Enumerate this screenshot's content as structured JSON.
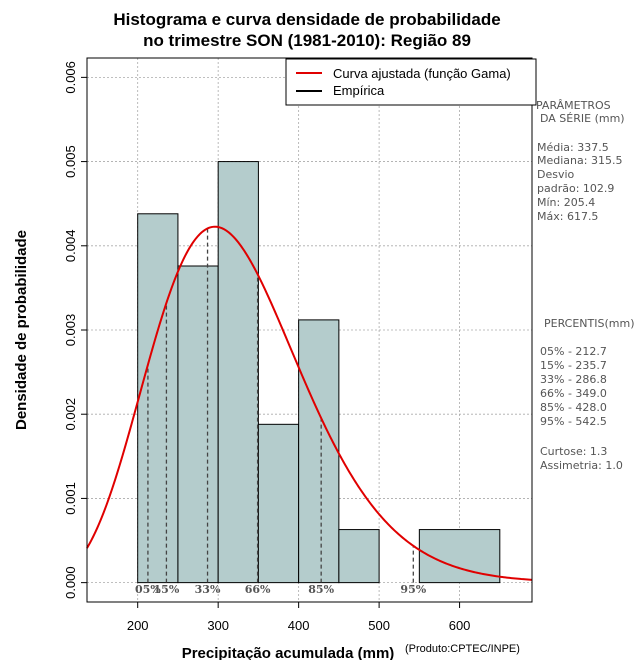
{
  "chart_data": {
    "type": "histogram",
    "title_line1": "Histograma e curva densidade de probabilidade",
    "title_line2": "no trimestre SON (1981-2010): Região 89",
    "xlabel": "Precipitação acumulada (mm)",
    "ylabel": "Densidade de probabilidade",
    "credit": "(Produto:CPTEC/INPE)",
    "xlim": [
      137,
      690
    ],
    "ylim": [
      -0.00023,
      0.00623
    ],
    "x_ticks": [
      200,
      300,
      400,
      500,
      600
    ],
    "x_tick_labels": [
      "200",
      "300",
      "400",
      "500",
      "600"
    ],
    "y_ticks": [
      0,
      0.001,
      0.002,
      0.003,
      0.004,
      0.005,
      0.006
    ],
    "y_tick_labels": [
      "0.000",
      "0.001",
      "0.002",
      "0.003",
      "0.004",
      "0.005",
      "0.006"
    ],
    "grid": true,
    "bins": [
      {
        "from": 200,
        "to": 250,
        "density": 0.00438
      },
      {
        "from": 250,
        "to": 300,
        "density": 0.00376
      },
      {
        "from": 300,
        "to": 350,
        "density": 0.005
      },
      {
        "from": 350,
        "to": 400,
        "density": 0.00188
      },
      {
        "from": 400,
        "to": 450,
        "density": 0.00312
      },
      {
        "from": 450,
        "to": 500,
        "density": 0.00063
      },
      {
        "from": 550,
        "to": 650,
        "density": 0.00063
      }
    ],
    "fitted_curve": {
      "name": "Curva ajustada (função Gama)",
      "color": "#e00000",
      "gamma_shape": 11.0,
      "gamma_scale": 29.6
    },
    "empirical_legend": {
      "name": "Empírica",
      "color": "#000000"
    },
    "percentile_markers": [
      {
        "label": "05%",
        "value": 212.7
      },
      {
        "label": "15%",
        "value": 235.7
      },
      {
        "label": "33%",
        "value": 286.8
      },
      {
        "label": "66%",
        "value": 349.0
      },
      {
        "label": "85%",
        "value": 428.0
      },
      {
        "label": "95%",
        "value": 542.5
      }
    ],
    "bar_color": "#b4cccc",
    "curve_color": "#e00000"
  },
  "side_panel": {
    "params_title_1": "PARÂMETROS",
    "params_title_2": "DA SÉRIE (mm)",
    "media": "Média:  337.5",
    "mediana": "Mediana:  315.5",
    "desvio_1": "Desvio",
    "desvio_2": "padrão:  102.9",
    "min": "Mín:  205.4",
    "max": "Máx:  617.5",
    "percentis_title": "PERCENTIS(mm)",
    "p05": "05% -  212.7",
    "p15": "15% -  235.7",
    "p33": "33% -  286.8",
    "p66": "66% -  349.0",
    "p85": "85% -  428.0",
    "p95": "95% -  542.5",
    "curtose": "Curtose:  1.3",
    "assimetria": "Assimetria:  1.0"
  }
}
